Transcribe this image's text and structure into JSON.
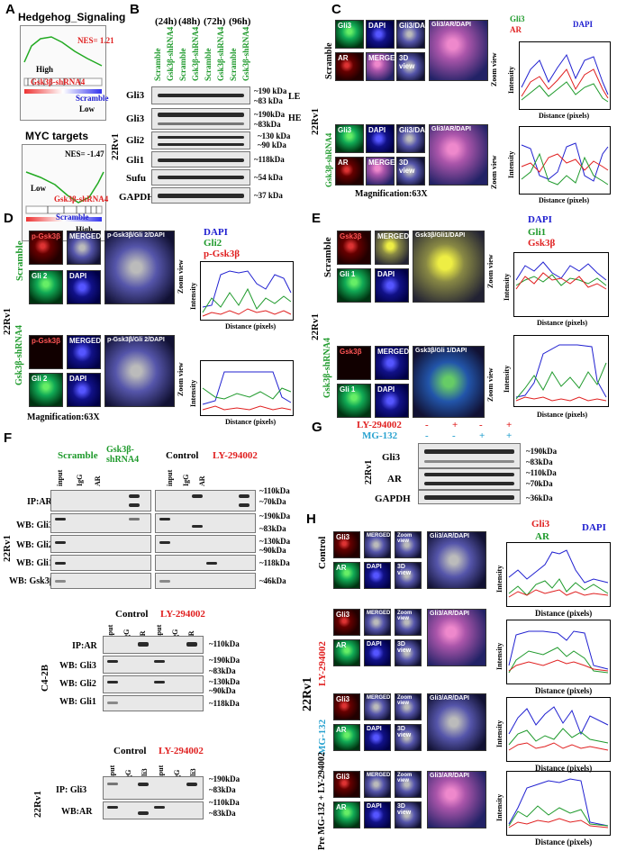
{
  "panels": {
    "A": "A",
    "B": "B",
    "C": "C",
    "D": "D",
    "E": "E",
    "F": "F",
    "G": "G",
    "H": "H"
  },
  "panelA": {
    "title1": "Hedgehog_Signaling",
    "nes1": "NES= 1.21",
    "high1": "High",
    "gene1": "Gsk3β-shRNA4",
    "scramble1": "Scramble",
    "low1": "Low",
    "title2": "MYC targets",
    "nes2": "NES= -1.47",
    "low2": "Low",
    "gene2": "Gsk3β-shRNA4",
    "scramble2": "Scramble",
    "high2": "High"
  },
  "panelB": {
    "times": [
      "(24h)",
      "(48h)",
      "(72h)",
      "(96h)"
    ],
    "lanes": [
      "Scramble",
      "Gsk3β-shRNA4",
      "Scramble",
      "Gsk3β-shRNA4",
      "Scramble",
      "Gsk3β-shRNA4",
      "Scramble",
      "Gsk3β-shRNA4"
    ],
    "rows": [
      "Gli3",
      "Gli3",
      "Gli2",
      "Gli1",
      "Sufu",
      "GAPDH"
    ],
    "sizes": [
      "~190 kDa",
      "~83 kDa",
      "~190kDa",
      "~83kDa",
      "~130 kDa",
      "~90 kDa",
      "~118kDa",
      "~54 kDa",
      "~37 kDa"
    ],
    "le": "LE",
    "he": "HE",
    "cell": "22Rv1"
  },
  "panelC": {
    "row1": "Scramble",
    "row2": "Gsk3β-shRNA4",
    "cell": "22Rv1",
    "labels": [
      "Gli3",
      "DAPI",
      "Gli3/DAPI",
      "AR",
      "MERGED",
      "3D view"
    ],
    "merge": "Gli3/AR/DAPI",
    "zoom": "Zoom view",
    "legend": [
      "Gli3",
      "AR",
      "DAPI"
    ],
    "ylabel": "Intensity",
    "xlabel": "Distance (pixels)",
    "mag": "Magnification:63X",
    "yt": [
      "250",
      "200",
      "150",
      "100",
      "50",
      "0"
    ],
    "xt": [
      "0",
      "20",
      "40",
      "60",
      "80",
      "100",
      "120"
    ]
  },
  "panelD": {
    "row1": "Scramble",
    "row2": "Gsk3β-shRNA4",
    "cell": "22Rv1",
    "labels": [
      "p-Gsk3β",
      "MERGED",
      "Gli 2",
      "DAPI"
    ],
    "merge": "p-Gsk3β/Gli 2/DAPI",
    "zoom": "Zoom view",
    "legend": [
      "DAPI",
      "Gli2",
      "p-Gsk3β"
    ],
    "ylabel": "Intensity",
    "xlabel": "Distance (pixels)",
    "mag": "Magnification:63X",
    "yt": [
      "250",
      "200",
      "150",
      "100",
      "50",
      "0"
    ],
    "xt": [
      "0",
      "10",
      "20",
      "30",
      "40",
      "50",
      "60",
      "70",
      "80"
    ]
  },
  "panelE": {
    "row1": "Scramble",
    "row2": "Gsk3β-shRNA4",
    "cell": "22Rv1",
    "labels": [
      "Gsk3β",
      "MERGED",
      "Gli 1",
      "DAPI"
    ],
    "merge": "Gsk3β/Gli1/DAPI",
    "merge2": "Gsk3β/Gli 1/DAPI",
    "zoom": "Zoom view",
    "legend": [
      "DAPI",
      "Gli1",
      "Gsk3β"
    ],
    "ylabel": "Intensity",
    "xlabel": "Distance (pixels)"
  },
  "panelF": {
    "headA": [
      "Scramble",
      "Gsk3β-shRNA4",
      "Control",
      "LY-294002"
    ],
    "lanes": [
      "input",
      "IgG",
      "AR"
    ],
    "rowsA": [
      "IP:AR",
      "WB: Gli3",
      "WB: Gli2",
      "WB: Gli1",
      "WB: Gsk3β"
    ],
    "sizesA": [
      "~110kDa",
      "~70kDa",
      "~190kDa",
      "~83kDa",
      "~130kDa",
      "~90kDa",
      "~118kDa",
      "~46kDa"
    ],
    "cellA": "22Rv1",
    "headB": [
      "Control",
      "LY-294002"
    ],
    "rowsB": [
      "IP:AR",
      "WB: Gli3",
      "WB: Gli2",
      "WB: Gli1"
    ],
    "sizesB": [
      "~110kDa",
      "~190kDa",
      "~83kDa",
      "~130kDa",
      "~90kDa",
      "~118kDa"
    ],
    "cellB": "C4-2B",
    "headC": [
      "Control",
      "LY-294002"
    ],
    "lanesC": [
      "input",
      "IgG",
      "Gli3"
    ],
    "rowsC": [
      "IP: Gli3",
      "WB:AR"
    ],
    "sizesC": [
      "~190kDa",
      "~83kDa",
      "~110kDa",
      "~83kDa"
    ],
    "cellC": "22Rv1"
  },
  "panelG": {
    "treat1": "LY-294002",
    "treat2": "MG-132",
    "signs1": [
      "-",
      "+",
      "-",
      "+"
    ],
    "signs2": [
      "-",
      "-",
      "+",
      "+"
    ],
    "rows": [
      "Gli3",
      "AR",
      "GAPDH"
    ],
    "sizes": [
      "~190kDa",
      "~83kDa",
      "~110kDa",
      "~70kDa",
      "~36kDa"
    ],
    "cell": "22Rv1"
  },
  "panelH": {
    "rows": [
      "Control",
      "LY-294002",
      "MG-132",
      "Pre MG-132 + LY-294002"
    ],
    "labels": [
      "Gli3",
      "MERGED",
      "Zoom view",
      "AR",
      "DAPI",
      "3D view"
    ],
    "merge": "Gli3/AR/DAPI",
    "legend": [
      "Gli3",
      "DAPI",
      "AR"
    ],
    "ylabel": "Intensity",
    "xlabel": "Distance (pixels)",
    "cell": "22Rv1",
    "yt": [
      "250",
      "200",
      "150",
      "100",
      "50",
      "0"
    ],
    "xt": [
      "0",
      "20",
      "40",
      "60",
      "80",
      "100"
    ]
  },
  "colors": {
    "green": "#1f9a2c",
    "red": "#e02020",
    "blue": "#2020d0",
    "cyan": "#2aa3d0"
  }
}
